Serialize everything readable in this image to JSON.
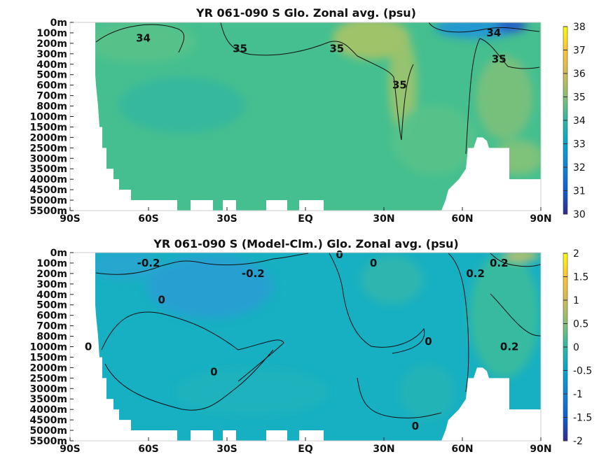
{
  "chart_data": [
    {
      "type": "heatmap",
      "title": "YR 061-090 S Glo. Zonal avg. (psu)",
      "x_ticks": [
        "90S",
        "60S",
        "30S",
        "EQ",
        "30N",
        "60N",
        "90N"
      ],
      "y_ticks": [
        "0m",
        "100m",
        "200m",
        "300m",
        "400m",
        "500m",
        "600m",
        "700m",
        "800m",
        "1000m",
        "1500m",
        "2000m",
        "2500m",
        "3000m",
        "3500m",
        "4000m",
        "4500m",
        "5000m",
        "5500m"
      ],
      "colorbar": {
        "min": 30,
        "max": 38,
        "ticks": [
          "30",
          "31",
          "32",
          "33",
          "34",
          "35",
          "36",
          "37",
          "38"
        ]
      },
      "contour_labels": [
        {
          "text": "34",
          "lat": -62,
          "depth_m": 150
        },
        {
          "text": "35",
          "lat": -25,
          "depth_m": 250
        },
        {
          "text": "35",
          "lat": 12,
          "depth_m": 250
        },
        {
          "text": "35",
          "lat": 36,
          "depth_m": 600
        },
        {
          "text": "34",
          "lat": 72,
          "depth_m": 100
        },
        {
          "text": "35",
          "lat": 74,
          "depth_m": 350
        }
      ],
      "colormap": "parula"
    },
    {
      "type": "heatmap",
      "title": "YR 061-090 S (Model-Clm.) Glo. Zonal avg. (psu)",
      "x_ticks": [
        "90S",
        "60S",
        "30S",
        "EQ",
        "30N",
        "60N",
        "90N"
      ],
      "y_ticks": [
        "0m",
        "100m",
        "200m",
        "300m",
        "400m",
        "500m",
        "600m",
        "700m",
        "800m",
        "1000m",
        "1500m",
        "2000m",
        "2500m",
        "3000m",
        "3500m",
        "4000m",
        "4500m",
        "5000m",
        "5500m"
      ],
      "colorbar": {
        "min": -2,
        "max": 2,
        "ticks": [
          "-2",
          "-1.5",
          "-1",
          "-0.5",
          "0",
          "0.5",
          "1",
          "1.5",
          "2"
        ]
      },
      "contour_labels": [
        {
          "text": "-0.2",
          "lat": -60,
          "depth_m": 100
        },
        {
          "text": "-0.2",
          "lat": -20,
          "depth_m": 200
        },
        {
          "text": "0",
          "lat": -55,
          "depth_m": 450
        },
        {
          "text": "0",
          "lat": -83,
          "depth_m": 1000
        },
        {
          "text": "0",
          "lat": -35,
          "depth_m": 2200
        },
        {
          "text": "0",
          "lat": 13,
          "depth_m": 20
        },
        {
          "text": "0",
          "lat": 26,
          "depth_m": 100
        },
        {
          "text": "0.2",
          "lat": 65,
          "depth_m": 200
        },
        {
          "text": "0.2",
          "lat": 74,
          "depth_m": 100
        },
        {
          "text": "0",
          "lat": 47,
          "depth_m": 900
        },
        {
          "text": "0.2",
          "lat": 78,
          "depth_m": 1000
        },
        {
          "text": "0",
          "lat": 42,
          "depth_m": 4800
        }
      ],
      "colormap": "parula"
    }
  ]
}
